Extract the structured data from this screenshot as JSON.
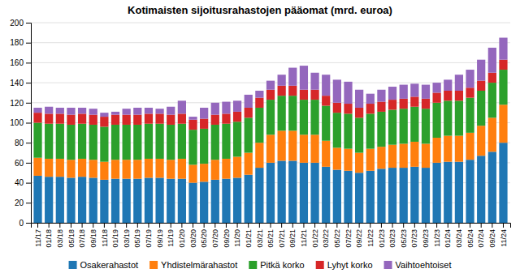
{
  "chart_data": {
    "type": "bar",
    "title": "Kotimaisten sijoitusrahastojen pääomat (mrd. euroa)",
    "stacked": true,
    "grid": true,
    "legend": "bottom",
    "categories": [
      "11/17",
      "01/18",
      "03/18",
      "05/18",
      "07/18",
      "09/18",
      "11/18",
      "01/19",
      "03/19",
      "05/19",
      "07/19",
      "09/19",
      "11/19",
      "01/20",
      "03/20",
      "05/20",
      "07/20",
      "09/20",
      "11/20",
      "01/21",
      "03/21",
      "05/21",
      "07/21",
      "09/21",
      "11/21",
      "01/22",
      "03/22",
      "05/22",
      "07/22",
      "09/22",
      "11/22",
      "01/23",
      "03/23",
      "05/23",
      "07/23",
      "09/23",
      "11/23",
      "01/24",
      "03/24",
      "05/24",
      "07/24",
      "09/24",
      "11/24"
    ],
    "series": [
      {
        "name": "Osakerahastot",
        "values": [
          47,
          46,
          46,
          45,
          46,
          45,
          43,
          44,
          44,
          44,
          45,
          45,
          44,
          44,
          40,
          41,
          43,
          44,
          45,
          48,
          55,
          60,
          62,
          62,
          60,
          60,
          56,
          53,
          52,
          50,
          52,
          54,
          55,
          55,
          56,
          55,
          60,
          61,
          61,
          63,
          67,
          71,
          80
        ]
      },
      {
        "name": "Yhdistelmärahastot",
        "values": [
          18,
          18,
          18,
          18,
          18,
          18,
          18,
          19,
          19,
          19,
          19,
          19,
          19,
          20,
          18,
          18,
          20,
          20,
          21,
          22,
          25,
          28,
          30,
          30,
          28,
          28,
          26,
          22,
          22,
          20,
          22,
          22,
          23,
          24,
          25,
          24,
          25,
          26,
          26,
          27,
          30,
          34,
          38
        ]
      },
      {
        "name": "Pitkä korko",
        "values": [
          35,
          35,
          35,
          35,
          35,
          35,
          35,
          35,
          35,
          35,
          35,
          35,
          35,
          35,
          35,
          35,
          35,
          35,
          35,
          35,
          35,
          35,
          35,
          35,
          35,
          35,
          35,
          35,
          35,
          35,
          35,
          35,
          35,
          35,
          35,
          35,
          35,
          35,
          35,
          35,
          35,
          35,
          35
        ]
      },
      {
        "name": "Lyhyt korko",
        "values": [
          10,
          10,
          10,
          10,
          10,
          10,
          10,
          10,
          10,
          10,
          10,
          10,
          10,
          10,
          10,
          10,
          10,
          10,
          10,
          10,
          10,
          10,
          10,
          10,
          10,
          10,
          10,
          10,
          10,
          10,
          10,
          10,
          10,
          10,
          10,
          10,
          10,
          10,
          10,
          10,
          10,
          10,
          10
        ]
      },
      {
        "name": "Vaihtoehtoiset",
        "values": [
          5,
          7,
          6,
          7,
          6,
          6,
          4,
          3,
          6,
          7,
          6,
          5,
          8,
          13,
          3,
          11,
          12,
          12,
          11,
          13,
          7,
          9,
          11,
          18,
          24,
          17,
          21,
          23,
          22,
          18,
          10,
          12,
          13,
          14,
          13,
          14,
          10,
          11,
          16,
          18,
          21,
          25,
          22
        ]
      }
    ],
    "ylim": [
      0,
      200
    ],
    "yticks": [
      0,
      20,
      40,
      60,
      80,
      100,
      120,
      140,
      160,
      180,
      200
    ]
  }
}
